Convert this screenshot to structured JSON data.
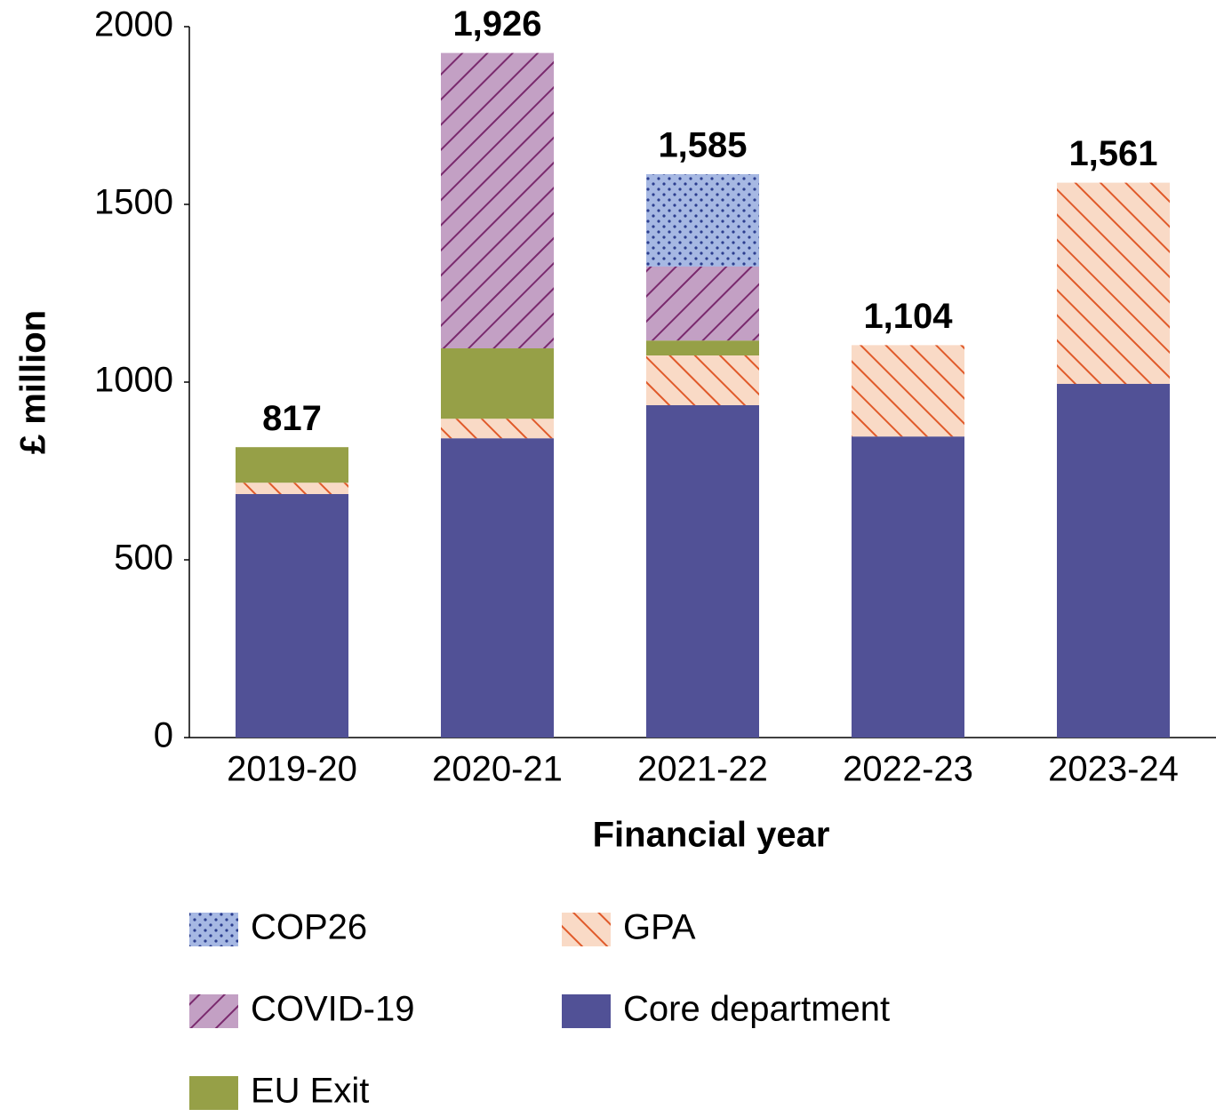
{
  "chart_data": {
    "type": "stacked_bar",
    "categories": [
      "2019-20",
      "2020-21",
      "2021-22",
      "2022-23",
      "2023-24"
    ],
    "series": [
      {
        "name": "Core department",
        "color": "#515196",
        "pattern": "solid",
        "values": [
          685,
          842,
          935,
          847,
          995
        ]
      },
      {
        "name": "GPA",
        "color": "#f9dac6",
        "pattern": "diag-down",
        "pattern_color": "#e05a2a",
        "values": [
          32,
          55,
          140,
          257,
          566
        ]
      },
      {
        "name": "EU Exit",
        "color": "#96a047",
        "pattern": "solid",
        "values": [
          100,
          198,
          42,
          0,
          0
        ]
      },
      {
        "name": "COVID-19",
        "color": "#c3a0c4",
        "pattern": "diag-up",
        "pattern_color": "#7a2a6e",
        "values": [
          0,
          831,
          208,
          0,
          0
        ]
      },
      {
        "name": "COP26",
        "color": "#a6b8e3",
        "pattern": "dots",
        "pattern_color": "#2c3e8f",
        "values": [
          0,
          0,
          260,
          0,
          0
        ]
      }
    ],
    "totals": {
      "values": [
        817,
        1926,
        1585,
        1104,
        1561
      ],
      "value_labels": [
        "817",
        "1,926",
        "1,585",
        "1,104",
        "1,561"
      ]
    },
    "xlabel": "Financial year",
    "ylabel": "£ million",
    "ylim": [
      0,
      2000
    ],
    "yticks": [
      0,
      500,
      1000,
      1500,
      2000
    ]
  }
}
